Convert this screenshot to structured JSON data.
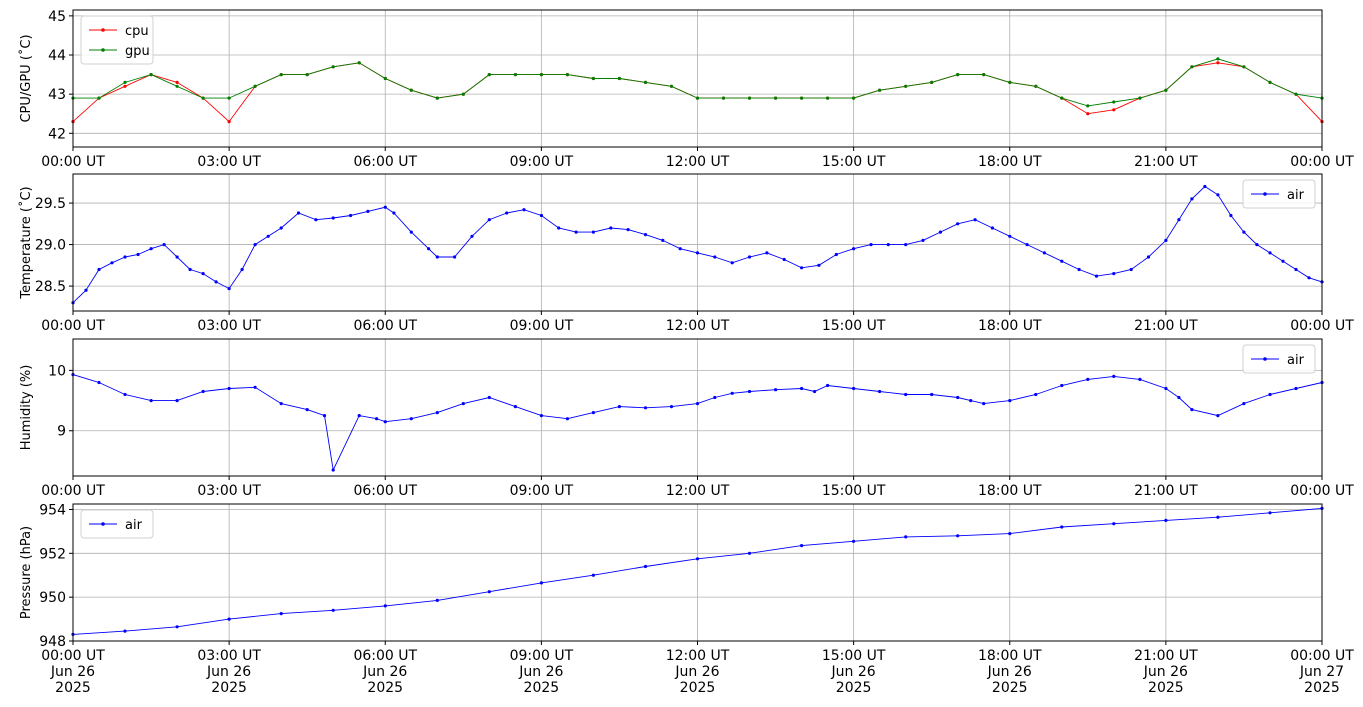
{
  "chart_data": [
    {
      "type": "line",
      "ylabel": "CPU/GPU (˚C)",
      "ylim": [
        41.65,
        45.15
      ],
      "yticks": [
        42,
        43,
        44,
        45
      ],
      "grid": true,
      "legend": "top-left",
      "x_range": [
        "2025-06-26 00:00",
        "2025-06-27 00:00"
      ],
      "x_tick_labels": [
        "00:00 UT",
        "03:00 UT",
        "06:00 UT",
        "09:00 UT",
        "12:00 UT",
        "15:00 UT",
        "18:00 UT",
        "21:00 UT",
        "00:00 UT"
      ],
      "series": [
        {
          "name": "cpu",
          "color": "#ff0000",
          "x": [
            "00:00",
            "00:30",
            "01:00",
            "01:30",
            "02:00",
            "02:30",
            "03:00",
            "03:30",
            "04:00",
            "04:30",
            "05:00",
            "05:30",
            "06:00",
            "06:30",
            "07:00",
            "07:30",
            "08:00",
            "08:30",
            "09:00",
            "09:30",
            "10:00",
            "10:30",
            "11:00",
            "11:30",
            "12:00",
            "12:30",
            "13:00",
            "13:30",
            "14:00",
            "14:30",
            "15:00",
            "15:30",
            "16:00",
            "16:30",
            "17:00",
            "17:30",
            "18:00",
            "18:30",
            "19:00",
            "19:30",
            "20:00",
            "20:30",
            "21:00",
            "21:30",
            "22:00",
            "22:30",
            "23:00",
            "23:30",
            "24:00"
          ],
          "values": [
            42.3,
            42.9,
            43.2,
            43.5,
            43.3,
            42.9,
            42.3,
            43.2,
            43.5,
            43.5,
            43.7,
            43.8,
            43.4,
            43.1,
            42.9,
            43.0,
            43.5,
            43.5,
            43.5,
            43.5,
            43.4,
            43.4,
            43.3,
            43.2,
            42.9,
            42.9,
            42.9,
            42.9,
            42.9,
            42.9,
            42.9,
            43.1,
            43.2,
            43.3,
            43.5,
            43.5,
            43.3,
            43.2,
            42.9,
            42.5,
            42.6,
            42.9,
            43.1,
            43.7,
            43.8,
            43.7,
            43.3,
            43.0,
            42.3
          ]
        },
        {
          "name": "gpu",
          "color": "#008000",
          "x": [
            "00:00",
            "00:30",
            "01:00",
            "01:30",
            "02:00",
            "02:30",
            "03:00",
            "03:30",
            "04:00",
            "04:30",
            "05:00",
            "05:30",
            "06:00",
            "06:30",
            "07:00",
            "07:30",
            "08:00",
            "08:30",
            "09:00",
            "09:30",
            "10:00",
            "10:30",
            "11:00",
            "11:30",
            "12:00",
            "12:30",
            "13:00",
            "13:30",
            "14:00",
            "14:30",
            "15:00",
            "15:30",
            "16:00",
            "16:30",
            "17:00",
            "17:30",
            "18:00",
            "18:30",
            "19:00",
            "19:30",
            "20:00",
            "20:30",
            "21:00",
            "21:30",
            "22:00",
            "22:30",
            "23:00",
            "23:30",
            "24:00"
          ],
          "values": [
            42.9,
            42.9,
            43.3,
            43.5,
            43.2,
            42.9,
            42.9,
            43.2,
            43.5,
            43.5,
            43.7,
            43.8,
            43.4,
            43.1,
            42.9,
            43.0,
            43.5,
            43.5,
            43.5,
            43.5,
            43.4,
            43.4,
            43.3,
            43.2,
            42.9,
            42.9,
            42.9,
            42.9,
            42.9,
            42.9,
            42.9,
            43.1,
            43.2,
            43.3,
            43.5,
            43.5,
            43.3,
            43.2,
            42.9,
            42.7,
            42.8,
            42.9,
            43.1,
            43.7,
            43.9,
            43.7,
            43.3,
            43.0,
            42.9
          ]
        }
      ]
    },
    {
      "type": "line",
      "ylabel": "Temperature (˚C)",
      "ylim": [
        28.2,
        29.85
      ],
      "yticks": [
        28.5,
        29.0,
        29.5
      ],
      "ytick_labels": [
        "28.5",
        "29.0",
        "29.5"
      ],
      "grid": true,
      "legend": "top-right",
      "x_range": [
        "2025-06-26 00:00",
        "2025-06-27 00:00"
      ],
      "x_tick_labels": [
        "00:00 UT",
        "03:00 UT",
        "06:00 UT",
        "09:00 UT",
        "12:00 UT",
        "15:00 UT",
        "18:00 UT",
        "21:00 UT",
        "00:00 UT"
      ],
      "series": [
        {
          "name": "air",
          "color": "#0000ff",
          "x": [
            "00:00",
            "00:15",
            "00:30",
            "00:45",
            "01:00",
            "01:15",
            "01:30",
            "01:45",
            "02:00",
            "02:15",
            "02:30",
            "02:45",
            "03:00",
            "03:15",
            "03:30",
            "03:45",
            "04:00",
            "04:20",
            "04:40",
            "05:00",
            "05:20",
            "05:40",
            "06:00",
            "06:10",
            "06:30",
            "06:50",
            "07:00",
            "07:20",
            "07:40",
            "08:00",
            "08:20",
            "08:40",
            "09:00",
            "09:20",
            "09:40",
            "10:00",
            "10:20",
            "10:40",
            "11:00",
            "11:20",
            "11:40",
            "12:00",
            "12:20",
            "12:40",
            "13:00",
            "13:20",
            "13:40",
            "14:00",
            "14:20",
            "14:40",
            "15:00",
            "15:20",
            "15:40",
            "16:00",
            "16:20",
            "16:40",
            "17:00",
            "17:20",
            "17:40",
            "18:00",
            "18:20",
            "18:40",
            "19:00",
            "19:20",
            "19:40",
            "20:00",
            "20:20",
            "20:40",
            "21:00",
            "21:15",
            "21:30",
            "21:45",
            "22:00",
            "22:15",
            "22:30",
            "22:45",
            "23:00",
            "23:15",
            "23:30",
            "23:45",
            "24:00"
          ],
          "values": [
            28.3,
            28.45,
            28.7,
            28.78,
            28.85,
            28.88,
            28.95,
            29.0,
            28.85,
            28.7,
            28.65,
            28.55,
            28.47,
            28.7,
            29.0,
            29.1,
            29.2,
            29.38,
            29.3,
            29.32,
            29.35,
            29.4,
            29.45,
            29.38,
            29.15,
            28.95,
            28.85,
            28.85,
            29.1,
            29.3,
            29.38,
            29.42,
            29.35,
            29.2,
            29.15,
            29.15,
            29.2,
            29.18,
            29.12,
            29.05,
            28.95,
            28.9,
            28.85,
            28.78,
            28.85,
            28.9,
            28.82,
            28.72,
            28.75,
            28.88,
            28.95,
            29.0,
            29.0,
            29.0,
            29.05,
            29.15,
            29.25,
            29.3,
            29.2,
            29.1,
            29.0,
            28.9,
            28.8,
            28.7,
            28.62,
            28.65,
            28.7,
            28.85,
            29.05,
            29.3,
            29.55,
            29.7,
            29.6,
            29.35,
            29.15,
            29.0,
            28.9,
            28.8,
            28.7,
            28.6,
            28.55
          ]
        }
      ]
    },
    {
      "type": "line",
      "ylabel": "Humidity (%)",
      "ylim": [
        8.25,
        10.52
      ],
      "yticks": [
        9,
        10
      ],
      "grid": true,
      "legend": "top-right",
      "x_range": [
        "2025-06-26 00:00",
        "2025-06-27 00:00"
      ],
      "x_tick_labels": [
        "00:00 UT",
        "03:00 UT",
        "06:00 UT",
        "09:00 UT",
        "12:00 UT",
        "15:00 UT",
        "18:00 UT",
        "21:00 UT",
        "00:00 UT"
      ],
      "series": [
        {
          "name": "air",
          "color": "#0000ff",
          "x": [
            "00:00",
            "00:30",
            "01:00",
            "01:30",
            "02:00",
            "02:30",
            "03:00",
            "03:30",
            "04:00",
            "04:30",
            "04:50",
            "05:00",
            "05:30",
            "05:50",
            "06:00",
            "06:30",
            "07:00",
            "07:30",
            "08:00",
            "08:30",
            "09:00",
            "09:30",
            "10:00",
            "10:30",
            "11:00",
            "11:30",
            "12:00",
            "12:20",
            "12:40",
            "13:00",
            "13:30",
            "14:00",
            "14:15",
            "14:30",
            "15:00",
            "15:30",
            "16:00",
            "16:30",
            "17:00",
            "17:15",
            "17:30",
            "18:00",
            "18:30",
            "19:00",
            "19:30",
            "20:00",
            "20:30",
            "21:00",
            "21:15",
            "21:30",
            "22:00",
            "22:30",
            "23:00",
            "23:30",
            "24:00"
          ],
          "values": [
            9.93,
            9.8,
            9.6,
            9.5,
            9.5,
            9.65,
            9.7,
            9.72,
            9.45,
            9.35,
            9.25,
            8.35,
            9.25,
            9.2,
            9.15,
            9.2,
            9.3,
            9.45,
            9.55,
            9.4,
            9.25,
            9.2,
            9.3,
            9.4,
            9.38,
            9.4,
            9.45,
            9.55,
            9.62,
            9.65,
            9.68,
            9.7,
            9.65,
            9.75,
            9.7,
            9.65,
            9.6,
            9.6,
            9.55,
            9.5,
            9.45,
            9.5,
            9.6,
            9.75,
            9.85,
            9.9,
            9.85,
            9.7,
            9.55,
            9.35,
            9.25,
            9.45,
            9.6,
            9.7,
            9.8
          ]
        }
      ]
    },
    {
      "type": "line",
      "ylabel": "Pressure (hPa)",
      "ylim": [
        948.0,
        954.25
      ],
      "yticks": [
        948,
        950,
        952,
        954
      ],
      "grid": true,
      "legend": "top-left",
      "x_range": [
        "2025-06-26 00:00",
        "2025-06-27 00:00"
      ],
      "x_tick_labels": [
        "00:00 UT\nJun 26\n2025",
        "03:00 UT\nJun 26\n2025",
        "06:00 UT\nJun 26\n2025",
        "09:00 UT\nJun 26\n2025",
        "12:00 UT\nJun 26\n2025",
        "15:00 UT\nJun 26\n2025",
        "18:00 UT\nJun 26\n2025",
        "21:00 UT\nJun 26\n2025",
        "00:00 UT\nJun 27\n2025"
      ],
      "series": [
        {
          "name": "air",
          "color": "#0000ff",
          "x": [
            "00:00",
            "01:00",
            "02:00",
            "03:00",
            "04:00",
            "05:00",
            "06:00",
            "07:00",
            "08:00",
            "09:00",
            "10:00",
            "11:00",
            "12:00",
            "13:00",
            "14:00",
            "15:00",
            "16:00",
            "17:00",
            "18:00",
            "19:00",
            "20:00",
            "21:00",
            "22:00",
            "23:00",
            "24:00"
          ],
          "values": [
            948.3,
            948.45,
            948.65,
            949.0,
            949.25,
            949.4,
            949.6,
            949.85,
            950.25,
            950.65,
            951.0,
            951.4,
            951.75,
            952.0,
            952.35,
            952.55,
            952.75,
            952.8,
            952.9,
            953.2,
            953.35,
            953.5,
            953.65,
            953.85,
            954.05
          ]
        }
      ]
    }
  ]
}
